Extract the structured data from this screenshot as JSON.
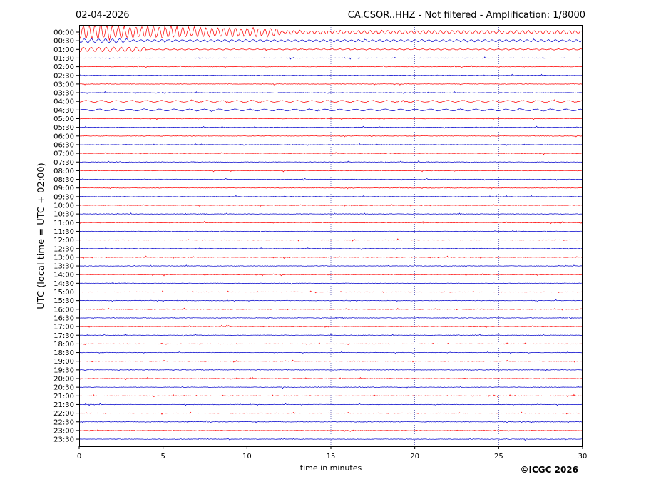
{
  "header": {
    "date": "02-04-2026",
    "station_title": "CA.CSOR..HHZ - Not filtered - Amplification: 1/8000"
  },
  "footer": {
    "copyright": "©ICGC 2026"
  },
  "colors": {
    "trace_a": "#ff0000",
    "trace_b": "#0000cc",
    "axis": "#000000",
    "grid": "#1a1a99"
  },
  "chart_data": {
    "type": "line",
    "title": "CA.CSOR..HHZ - Not filtered - Amplification: 1/8000",
    "subtitle": "02-04-2026",
    "xlabel": "time in minutes",
    "ylabel": "UTC (local time = UTC + 02:00)",
    "xlim": [
      0,
      30
    ],
    "x_ticks": [
      0,
      5,
      10,
      15,
      20,
      25,
      30
    ],
    "grid": "vertical dotted at every 5 minutes",
    "row_labels": [
      "00:00",
      "00:30",
      "01:00",
      "01:30",
      "02:00",
      "02:30",
      "03:00",
      "03:30",
      "04:00",
      "04:30",
      "05:00",
      "05:30",
      "06:00",
      "06:30",
      "07:00",
      "07:30",
      "08:00",
      "08:30",
      "09:00",
      "09:30",
      "10:00",
      "10:30",
      "11:00",
      "11:30",
      "12:00",
      "12:30",
      "13:00",
      "13:30",
      "14:00",
      "14:30",
      "15:00",
      "15:30",
      "16:00",
      "16:30",
      "17:00",
      "17:30",
      "18:00",
      "18:30",
      "19:00",
      "19:30",
      "20:00",
      "20:30",
      "21:00",
      "21:30",
      "22:00",
      "22:30",
      "23:00",
      "23:30"
    ],
    "series_colors": [
      "#ff0000",
      "#0000cc"
    ],
    "event": {
      "description_rows": [
        "00:00",
        "00:30",
        "01:00"
      ],
      "strongest_row": "00:00",
      "start_minute": 0,
      "strong_until_minute": 12
    },
    "noise_elevated_rows": [
      "04:00",
      "04:30"
    ]
  }
}
